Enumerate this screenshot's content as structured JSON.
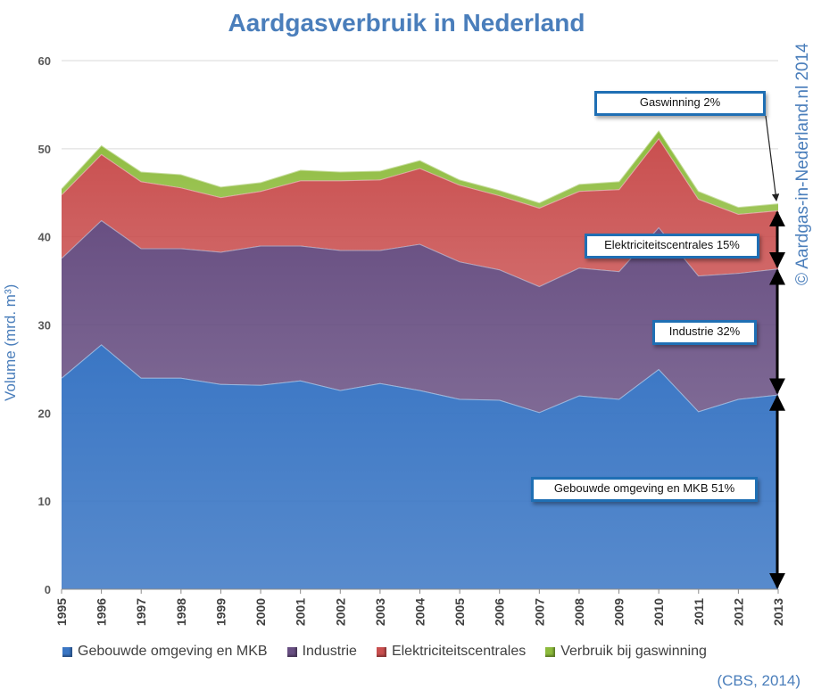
{
  "chart_data": {
    "type": "area",
    "title": "Aardgasverbruik in Nederland",
    "ylabel": "Volume (mrd. m³)",
    "ylim": [
      0,
      60
    ],
    "yticks": [
      0,
      10,
      20,
      30,
      40,
      50,
      60
    ],
    "categories": [
      "1995",
      "1996",
      "1997",
      "1998",
      "1999",
      "2000",
      "2001",
      "2002",
      "2003",
      "2004",
      "2005",
      "2006",
      "2007",
      "2008",
      "2009",
      "2010",
      "2011",
      "2012",
      "2013"
    ],
    "stacked": true,
    "grid": true,
    "legend_position": "bottom",
    "series": [
      {
        "name": "Gebouwde omgeving en MKB",
        "color": "#3a76c4",
        "values": [
          24.0,
          27.8,
          24.0,
          24.0,
          23.3,
          23.2,
          23.7,
          22.6,
          23.4,
          22.6,
          21.6,
          21.5,
          20.1,
          22.0,
          21.6,
          25.0,
          20.2,
          21.6,
          22.1
        ]
      },
      {
        "name": "Industrie",
        "color": "#684f82",
        "values": [
          13.6,
          14.1,
          14.7,
          14.7,
          15.0,
          15.8,
          15.3,
          15.9,
          15.1,
          16.6,
          15.6,
          14.8,
          14.3,
          14.5,
          14.5,
          16.1,
          15.4,
          14.3,
          14.3
        ]
      },
      {
        "name": "Elektriciteitscentrales",
        "color": "#c94f4f",
        "values": [
          7.2,
          7.5,
          7.6,
          6.9,
          6.2,
          6.2,
          7.4,
          7.9,
          8.0,
          8.6,
          8.7,
          8.4,
          8.9,
          8.7,
          9.3,
          10.1,
          8.7,
          6.7,
          6.6
        ]
      },
      {
        "name": "Verbruik bij gaswinning",
        "color": "#8dbb3c",
        "values": [
          0.7,
          1.0,
          1.1,
          1.5,
          1.2,
          1.0,
          1.2,
          1.0,
          1.0,
          0.9,
          0.6,
          0.6,
          0.6,
          0.8,
          0.9,
          0.9,
          0.9,
          0.8,
          0.8
        ]
      }
    ],
    "annotations": [
      {
        "text": "Gaswinning 2%"
      },
      {
        "text": "Elektriciteitscentrales  15%"
      },
      {
        "text": "Industrie 32%"
      },
      {
        "text": "Gebouwde  omgeving en MKB 51%"
      }
    ]
  },
  "copyright": "© Aardgas-in-Nederland.nl  2014",
  "source": "(CBS, 2014)"
}
